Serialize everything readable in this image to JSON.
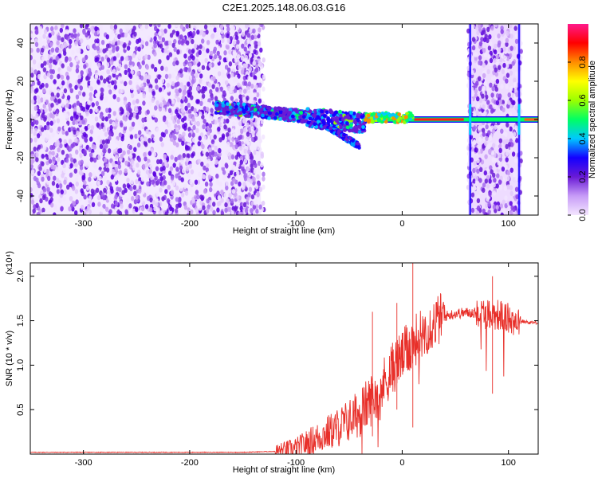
{
  "title": "C2E1.2025.148.06.03.G16",
  "chart_data": [
    {
      "type": "heatmap",
      "xlabel": "Height of straight line (km)",
      "ylabel": "Frequency (Hz)",
      "xlim": [
        -350,
        128
      ],
      "ylim": [
        -50,
        50
      ],
      "xticks": [
        -300,
        -200,
        -100,
        0,
        100
      ],
      "yticks": [
        -40,
        -20,
        0,
        20,
        40
      ],
      "colorbar": {
        "label": "Normalized spectral amplitude",
        "range": [
          0.0,
          1.0
        ],
        "ticks": [
          "0.0",
          "0.2",
          "0.4",
          "0.6",
          "0.8"
        ],
        "colors": [
          "#f4e6ff",
          "#c79cf7",
          "#6a1ad6",
          "#1400ff",
          "#00c8ff",
          "#00ff64",
          "#9bff00",
          "#ffff00",
          "#ff8c00",
          "#ff0000",
          "#ff1a8c"
        ]
      },
      "regions": [
        {
          "x_range": [
            -350,
            -135
          ],
          "f_range": [
            -50,
            50
          ],
          "amplitude": "scattered noise 0.0-0.3"
        },
        {
          "x_range": [
            -175,
            -35
          ],
          "f_center": [
            8,
            0
          ],
          "amplitude": "signal 0.2-0.7"
        },
        {
          "x_range": [
            -35,
            128
          ],
          "f_center": 0,
          "amplitude": "signal 0.8-1.0"
        },
        {
          "x_range": [
            62,
            112
          ],
          "f_range": [
            -50,
            50
          ],
          "amplitude": "scattered noise 0.0-0.2"
        }
      ]
    },
    {
      "type": "line",
      "xlabel": "Height of straight line (km)",
      "ylabel": "SNR (10 * v/v)",
      "y_multiplier": "(x10⁴)",
      "xlim": [
        -350,
        128
      ],
      "ylim": [
        0,
        2.15
      ],
      "xticks": [
        -300,
        -200,
        -100,
        0,
        100
      ],
      "yticks": [
        "0.5",
        "1.0",
        "1.5",
        "2.0"
      ],
      "color": "#e8302a",
      "x": [
        -350,
        -300,
        -250,
        -200,
        -150,
        -120,
        -100,
        -90,
        -80,
        -70,
        -60,
        -50,
        -40,
        -30,
        -20,
        -10,
        0,
        10,
        20,
        30,
        40,
        50,
        60,
        70,
        80,
        90,
        100,
        110,
        120,
        128
      ],
      "y": [
        0.02,
        0.02,
        0.02,
        0.02,
        0.02,
        0.03,
        0.06,
        0.12,
        0.18,
        0.24,
        0.3,
        0.38,
        0.46,
        0.6,
        0.75,
        0.95,
        1.1,
        1.25,
        1.38,
        1.48,
        1.55,
        1.58,
        1.59,
        1.59,
        1.58,
        1.57,
        1.52,
        1.5,
        1.48,
        1.48
      ]
    }
  ]
}
